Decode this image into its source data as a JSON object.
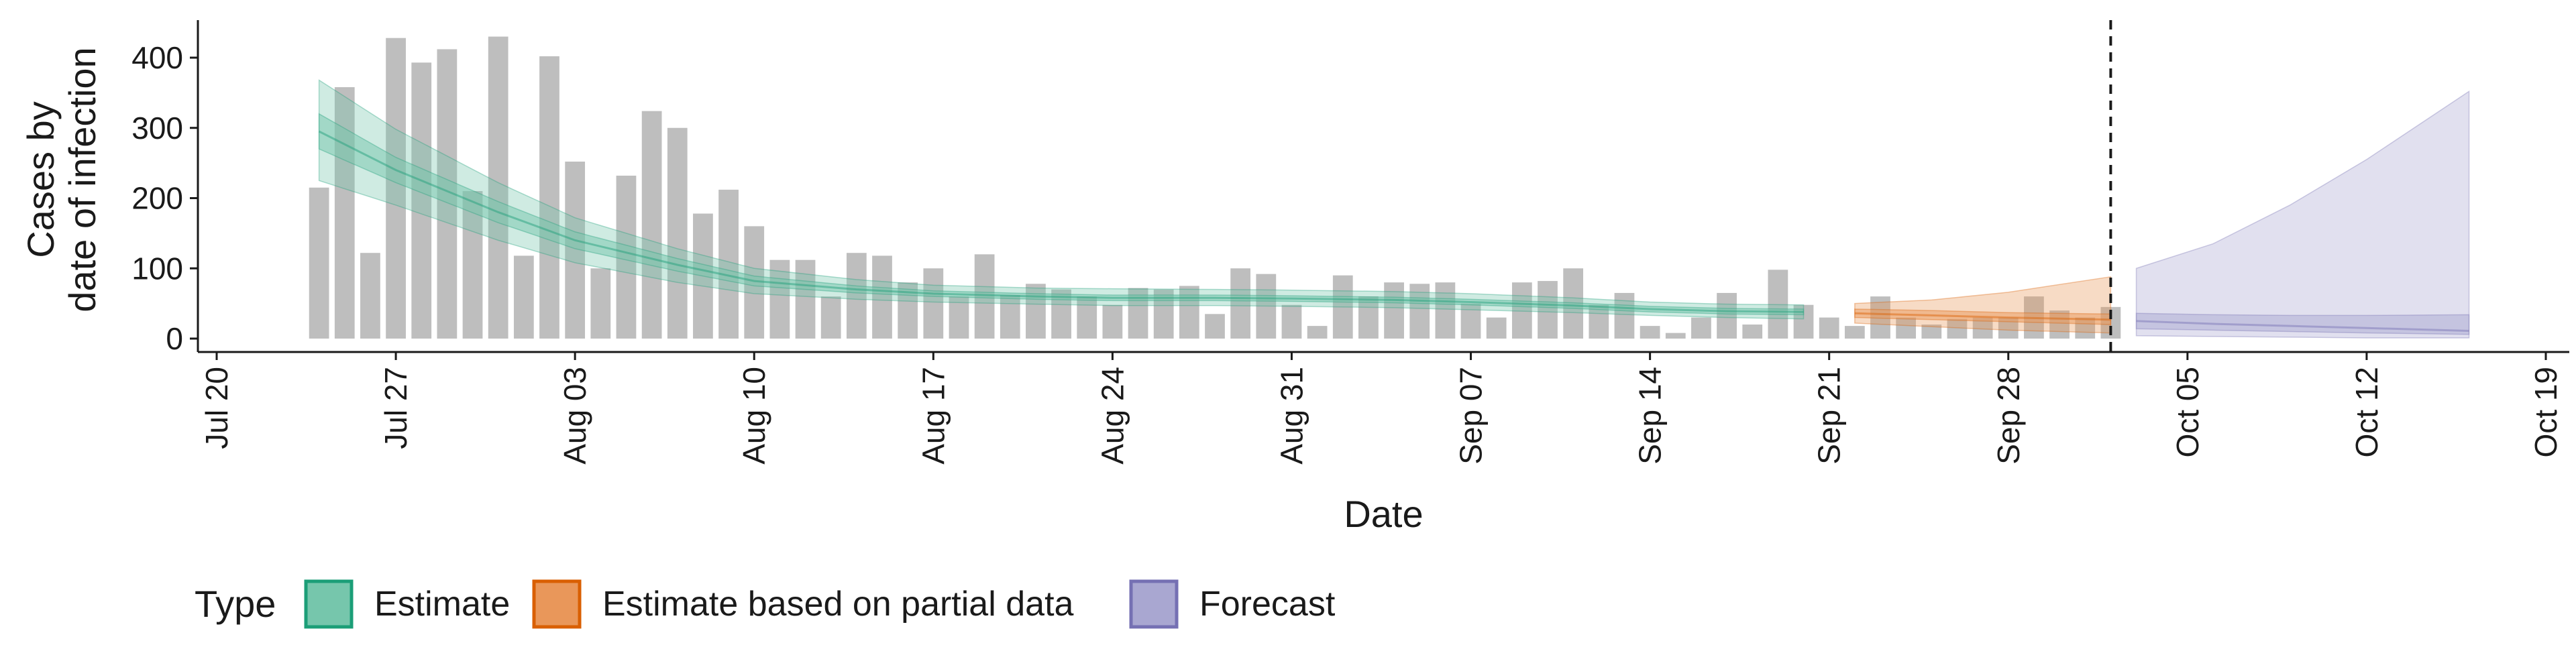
{
  "chart_data": {
    "type": "bar",
    "xlabel": "Date",
    "ylabel_lines": [
      "Cases by",
      "date of infection"
    ],
    "ylim": [
      0,
      450
    ],
    "y_ticks": [
      0,
      100,
      200,
      300,
      400
    ],
    "x_range": [
      "2020-07-20",
      "2020-10-19"
    ],
    "x_ticks": [
      {
        "date": "2020-07-20",
        "label": "Jul 20"
      },
      {
        "date": "2020-07-27",
        "label": "Jul 27"
      },
      {
        "date": "2020-08-03",
        "label": "Aug 03"
      },
      {
        "date": "2020-08-10",
        "label": "Aug 10"
      },
      {
        "date": "2020-08-17",
        "label": "Aug 17"
      },
      {
        "date": "2020-08-24",
        "label": "Aug 24"
      },
      {
        "date": "2020-08-31",
        "label": "Aug 31"
      },
      {
        "date": "2020-09-07",
        "label": "Sep 07"
      },
      {
        "date": "2020-09-14",
        "label": "Sep 14"
      },
      {
        "date": "2020-09-21",
        "label": "Sep 21"
      },
      {
        "date": "2020-09-28",
        "label": "Sep 28"
      },
      {
        "date": "2020-10-05",
        "label": "Oct 05"
      },
      {
        "date": "2020-10-12",
        "label": "Oct 12"
      },
      {
        "date": "2020-10-19",
        "label": "Oct 19"
      }
    ],
    "bar_color": "#bebebe",
    "reported_cases": {
      "dates": [
        "2020-07-24",
        "2020-07-25",
        "2020-07-26",
        "2020-07-27",
        "2020-07-28",
        "2020-07-29",
        "2020-07-30",
        "2020-07-31",
        "2020-08-01",
        "2020-08-02",
        "2020-08-03",
        "2020-08-04",
        "2020-08-05",
        "2020-08-06",
        "2020-08-07",
        "2020-08-08",
        "2020-08-09",
        "2020-08-10",
        "2020-08-11",
        "2020-08-12",
        "2020-08-13",
        "2020-08-14",
        "2020-08-15",
        "2020-08-16",
        "2020-08-17",
        "2020-08-18",
        "2020-08-19",
        "2020-08-20",
        "2020-08-21",
        "2020-08-22",
        "2020-08-23",
        "2020-08-24",
        "2020-08-25",
        "2020-08-26",
        "2020-08-27",
        "2020-08-28",
        "2020-08-29",
        "2020-08-30",
        "2020-08-31",
        "2020-09-01",
        "2020-09-02",
        "2020-09-03",
        "2020-09-04",
        "2020-09-05",
        "2020-09-06",
        "2020-09-07",
        "2020-09-08",
        "2020-09-09",
        "2020-09-10",
        "2020-09-11",
        "2020-09-12",
        "2020-09-13",
        "2020-09-14",
        "2020-09-15",
        "2020-09-16",
        "2020-09-17",
        "2020-09-18",
        "2020-09-19",
        "2020-09-20",
        "2020-09-21",
        "2020-09-22",
        "2020-09-23",
        "2020-09-24",
        "2020-09-25",
        "2020-09-26",
        "2020-09-27",
        "2020-09-28",
        "2020-09-29",
        "2020-09-30",
        "2020-10-01",
        "2020-10-02"
      ],
      "values": [
        215,
        358,
        122,
        428,
        393,
        412,
        210,
        430,
        118,
        402,
        252,
        100,
        232,
        324,
        300,
        178,
        212,
        160,
        112,
        112,
        60,
        122,
        118,
        80,
        100,
        60,
        120,
        62,
        78,
        70,
        60,
        48,
        72,
        70,
        75,
        35,
        100,
        92,
        48,
        18,
        90,
        60,
        80,
        78,
        80,
        50,
        30,
        80,
        82,
        100,
        48,
        65,
        18,
        8,
        30,
        65,
        20,
        98,
        48,
        30,
        18,
        60,
        30,
        20,
        28,
        30,
        30,
        60,
        40,
        30,
        45
      ]
    },
    "estimate": {
      "name": "Estimate",
      "color": "#1b9e77",
      "fill": "#76c6ac",
      "dates": [
        "2020-07-24",
        "2020-07-27",
        "2020-07-31",
        "2020-08-03",
        "2020-08-07",
        "2020-08-10",
        "2020-08-14",
        "2020-08-17",
        "2020-08-21",
        "2020-08-24",
        "2020-08-28",
        "2020-08-31",
        "2020-09-04",
        "2020-09-07",
        "2020-09-11",
        "2020-09-14",
        "2020-09-17",
        "2020-09-20"
      ],
      "median": [
        295,
        240,
        180,
        140,
        105,
        82,
        70,
        64,
        60,
        58,
        58,
        57,
        55,
        52,
        47,
        42,
        39,
        38
      ],
      "lower_50": [
        270,
        222,
        165,
        128,
        96,
        75,
        65,
        60,
        56,
        54,
        54,
        53,
        51,
        48,
        43,
        38,
        35,
        34
      ],
      "upper_50": [
        320,
        258,
        195,
        152,
        114,
        89,
        75,
        68,
        64,
        62,
        62,
        61,
        59,
        56,
        51,
        46,
        43,
        42
      ],
      "lower_90": [
        225,
        190,
        140,
        108,
        80,
        64,
        56,
        52,
        49,
        47,
        47,
        46,
        44,
        41,
        37,
        33,
        30,
        28
      ],
      "upper_90": [
        368,
        298,
        222,
        172,
        128,
        100,
        84,
        76,
        72,
        71,
        70,
        69,
        67,
        64,
        58,
        52,
        49,
        48
      ]
    },
    "partial": {
      "name": "Estimate based on partial data",
      "color": "#d95f02",
      "fill": "#e9975a",
      "dates": [
        "2020-09-22",
        "2020-09-25",
        "2020-09-28",
        "2020-10-02"
      ],
      "median": [
        36,
        33,
        30,
        27
      ],
      "lower_50": [
        30,
        27,
        24,
        20
      ],
      "upper_50": [
        42,
        40,
        37,
        35
      ],
      "lower_90": [
        22,
        17,
        12,
        8
      ],
      "upper_90": [
        50,
        55,
        66,
        88
      ]
    },
    "forecast": {
      "name": "Forecast",
      "color": "#7570b3",
      "fill": "#a9a7d1",
      "dates": [
        "2020-10-03",
        "2020-10-06",
        "2020-10-09",
        "2020-10-12",
        "2020-10-16"
      ],
      "median": [
        25,
        21,
        18,
        15,
        11
      ],
      "lower_50": [
        14,
        12,
        10,
        8,
        6
      ],
      "upper_50": [
        36,
        34,
        33,
        33,
        34
      ],
      "lower_90": [
        4,
        3,
        2,
        1,
        1
      ],
      "upper_90": [
        100,
        135,
        190,
        255,
        352
      ]
    },
    "forecast_start_line": "2020-10-02",
    "legend": {
      "title": "Type",
      "position": "bottom",
      "items": [
        {
          "label": "Estimate",
          "color": "#1b9e77",
          "fill": "#76c6ac"
        },
        {
          "label": "Estimate based on partial data",
          "color": "#d95f02",
          "fill": "#e9975a"
        },
        {
          "label": "Forecast",
          "color": "#7570b3",
          "fill": "#a9a7d1"
        }
      ]
    },
    "grid": false
  }
}
